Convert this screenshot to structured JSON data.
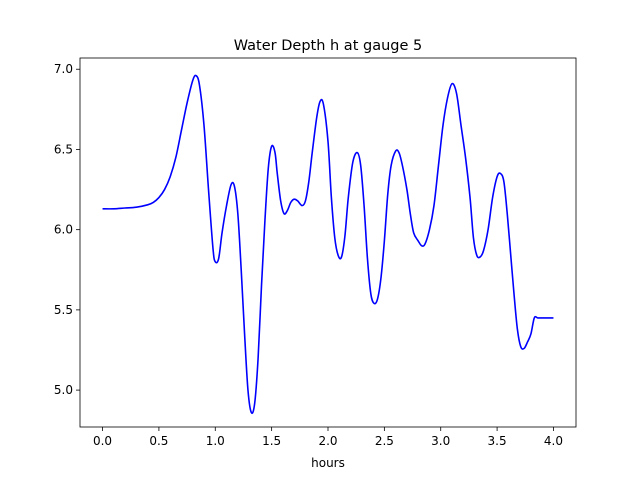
{
  "chart_data": {
    "type": "line",
    "title": "Water Depth h at gauge 5",
    "xlabel": "hours",
    "ylabel": "",
    "xlim": [
      -0.2,
      4.2
    ],
    "ylim": [
      4.77,
      7.07
    ],
    "xticks": [
      0.0,
      0.5,
      1.0,
      1.5,
      2.0,
      2.5,
      3.0,
      3.5,
      4.0
    ],
    "xtick_labels": [
      "0.0",
      "0.5",
      "1.0",
      "1.5",
      "2.0",
      "2.5",
      "3.0",
      "3.5",
      "4.0"
    ],
    "yticks": [
      5.0,
      5.5,
      6.0,
      6.5,
      7.0
    ],
    "ytick_labels": [
      "5.0",
      "5.5",
      "6.0",
      "6.5",
      "7.0"
    ],
    "grid": false,
    "series": [
      {
        "color": "#0000ff",
        "x": [
          0.0,
          0.1,
          0.2,
          0.3,
          0.4,
          0.45,
          0.5,
          0.55,
          0.6,
          0.65,
          0.7,
          0.75,
          0.8,
          0.83,
          0.86,
          0.9,
          0.94,
          0.98,
          1.0,
          1.03,
          1.06,
          1.1,
          1.14,
          1.17,
          1.2,
          1.23,
          1.26,
          1.29,
          1.32,
          1.35,
          1.38,
          1.41,
          1.44,
          1.47,
          1.5,
          1.53,
          1.55,
          1.58,
          1.61,
          1.64,
          1.67,
          1.7,
          1.73,
          1.77,
          1.8,
          1.83,
          1.86,
          1.9,
          1.93,
          1.96,
          2.0,
          2.03,
          2.06,
          2.09,
          2.12,
          2.15,
          2.18,
          2.22,
          2.26,
          2.29,
          2.32,
          2.35,
          2.38,
          2.41,
          2.44,
          2.47,
          2.5,
          2.53,
          2.56,
          2.6,
          2.63,
          2.66,
          2.7,
          2.73,
          2.76,
          2.8,
          2.83,
          2.86,
          2.9,
          2.94,
          2.98,
          3.02,
          3.06,
          3.1,
          3.14,
          3.18,
          3.22,
          3.26,
          3.29,
          3.32,
          3.35,
          3.38,
          3.42,
          3.46,
          3.5,
          3.53,
          3.56,
          3.59,
          3.62,
          3.65,
          3.68,
          3.71,
          3.74,
          3.77,
          3.8,
          3.83,
          3.86,
          3.89,
          3.92,
          3.95,
          3.98,
          4.0
        ],
        "y": [
          6.13,
          6.13,
          6.135,
          6.14,
          6.155,
          6.17,
          6.2,
          6.25,
          6.33,
          6.45,
          6.62,
          6.79,
          6.93,
          6.96,
          6.9,
          6.65,
          6.25,
          5.88,
          5.8,
          5.82,
          5.98,
          6.15,
          6.28,
          6.27,
          6.1,
          5.75,
          5.35,
          5.0,
          4.86,
          4.92,
          5.2,
          5.65,
          6.05,
          6.38,
          6.52,
          6.48,
          6.35,
          6.18,
          6.1,
          6.12,
          6.17,
          6.19,
          6.18,
          6.15,
          6.18,
          6.3,
          6.48,
          6.7,
          6.8,
          6.78,
          6.55,
          6.2,
          5.95,
          5.84,
          5.83,
          5.96,
          6.2,
          6.42,
          6.48,
          6.4,
          6.15,
          5.82,
          5.6,
          5.54,
          5.57,
          5.7,
          5.93,
          6.22,
          6.4,
          6.49,
          6.48,
          6.4,
          6.25,
          6.1,
          5.98,
          5.93,
          5.9,
          5.91,
          6.0,
          6.15,
          6.4,
          6.65,
          6.82,
          6.91,
          6.85,
          6.65,
          6.45,
          6.2,
          5.95,
          5.84,
          5.83,
          5.87,
          6.0,
          6.2,
          6.33,
          6.35,
          6.3,
          6.1,
          5.85,
          5.6,
          5.38,
          5.27,
          5.26,
          5.3,
          5.35,
          5.45,
          5.45,
          5.45,
          5.45,
          5.45,
          5.45,
          5.45
        ]
      }
    ]
  }
}
